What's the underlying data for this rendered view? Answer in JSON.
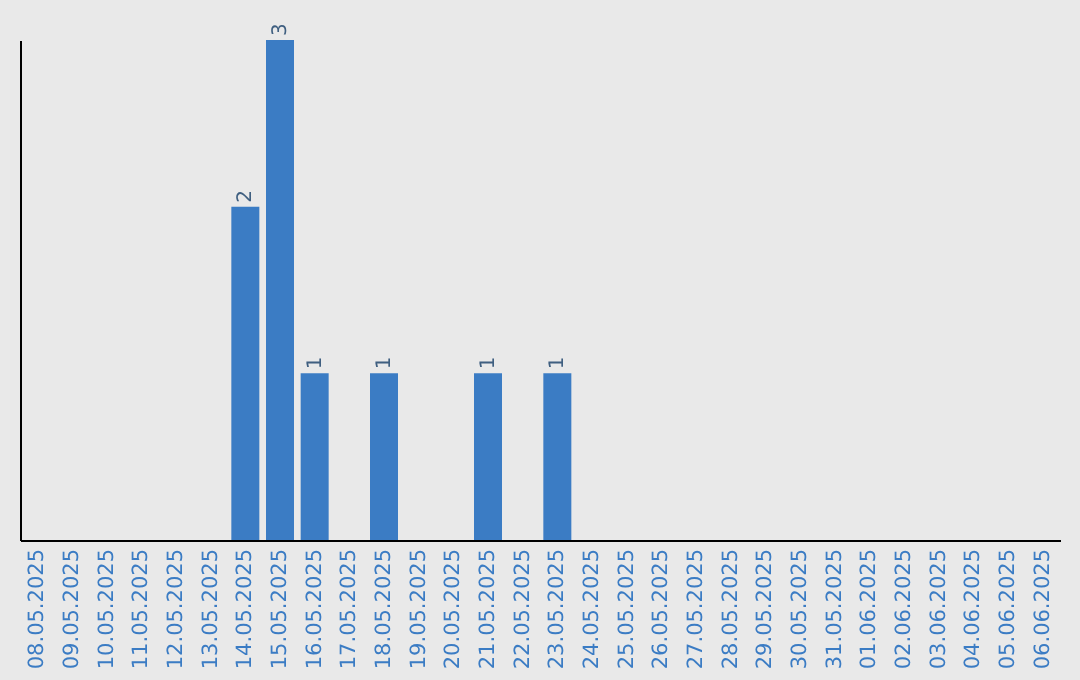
{
  "chart_data": {
    "type": "bar",
    "categories": [
      "08.05.2025",
      "09.05.2025",
      "10.05.2025",
      "11.05.2025",
      "12.05.2025",
      "13.05.2025",
      "14.05.2025",
      "15.05.2025",
      "16.05.2025",
      "17.05.2025",
      "18.05.2025",
      "19.05.2025",
      "20.05.2025",
      "21.05.2025",
      "22.05.2025",
      "23.05.2025",
      "24.05.2025",
      "25.05.2025",
      "26.05.2025",
      "27.05.2025",
      "28.05.2025",
      "29.05.2025",
      "30.05.2025",
      "31.05.2025",
      "01.06.2025",
      "02.06.2025",
      "03.06.2025",
      "04.06.2025",
      "05.06.2025",
      "06.06.2025"
    ],
    "values": [
      null,
      null,
      null,
      null,
      null,
      null,
      2,
      3,
      1,
      null,
      1,
      null,
      null,
      1,
      null,
      1,
      null,
      null,
      null,
      null,
      null,
      null,
      null,
      null,
      null,
      null,
      null,
      null,
      null,
      null
    ],
    "color": "#3b7cc4",
    "ylim": [
      0,
      3.0
    ],
    "data_labels": true,
    "tick_labels": "x",
    "grid": false
  }
}
